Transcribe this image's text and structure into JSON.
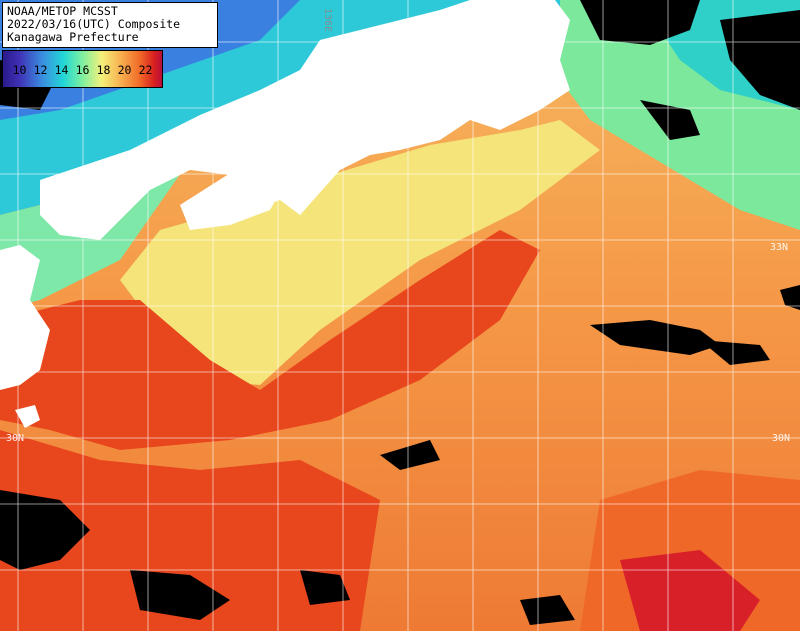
{
  "header": {
    "line1": "NOAA/METOP MCSST",
    "line2": "2022/03/16(UTC) Composite",
    "line3": "Kanagawa Prefecture"
  },
  "legend": {
    "ticks": [
      "10",
      "12",
      "14",
      "16",
      "18",
      "20",
      "22"
    ]
  },
  "grid_labels": {
    "lon_136": "136E",
    "lat_33_right": "33N",
    "lat_30_left": "30N",
    "lat_30_right": "30N"
  },
  "colors": {
    "land": "#ffffff",
    "cloud": "#000000",
    "grid": "#ffffff",
    "cold": "#22d6d6",
    "mild": "#f4f07a",
    "warm": "#f8a048",
    "hot": "#e83a18"
  }
}
